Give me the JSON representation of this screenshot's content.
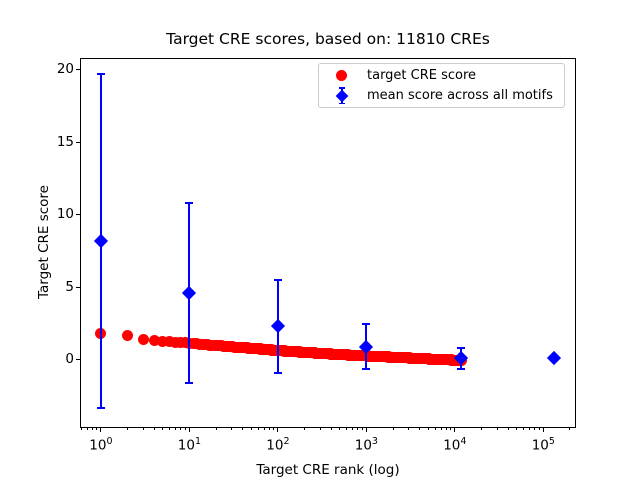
{
  "title": "Target CRE scores, based on: 11810 CREs",
  "axes": {
    "xlabel": "Target CRE rank (log)",
    "ylabel": "Target CRE score"
  },
  "legend": {
    "position": "upper right",
    "items": [
      {
        "label": "target CRE score",
        "marker": "red-circle",
        "color": "#ff0000"
      },
      {
        "label": "mean score across all motifs",
        "marker": "blue-diamond-errorbar",
        "color": "#0000ff"
      }
    ]
  },
  "chart_data": {
    "type": "scatter",
    "title": "Target CRE scores, based on: 11810 CREs",
    "xlabel": "Target CRE rank (log)",
    "ylabel": "Target CRE score",
    "xscale": "log",
    "grid": false,
    "xlim": [
      0.58,
      234000
    ],
    "ylim": [
      -4.68,
      20.86
    ],
    "x_ticks": [
      {
        "value": 1,
        "exponent": "0"
      },
      {
        "value": 10,
        "exponent": "1"
      },
      {
        "value": 100,
        "exponent": "2"
      },
      {
        "value": 1000,
        "exponent": "3"
      },
      {
        "value": 10000,
        "exponent": "4"
      },
      {
        "value": 100000,
        "exponent": "5"
      }
    ],
    "y_ticks": [
      0,
      5,
      10,
      15,
      20
    ],
    "series": [
      {
        "name": "target CRE score",
        "marker": "circle",
        "color": "#ff0000",
        "n_points": 11810,
        "sampled_points": [
          [
            1,
            1.81
          ],
          [
            2,
            1.7
          ],
          [
            3,
            1.42
          ],
          [
            4,
            1.35
          ],
          [
            5,
            1.28
          ],
          [
            6,
            1.24
          ],
          [
            8,
            1.18
          ],
          [
            10,
            1.13
          ],
          [
            13,
            1.07
          ],
          [
            17,
            1.01
          ],
          [
            22,
            0.96
          ],
          [
            30,
            0.89
          ],
          [
            40,
            0.83
          ],
          [
            55,
            0.77
          ],
          [
            75,
            0.7
          ],
          [
            100,
            0.63
          ],
          [
            140,
            0.57
          ],
          [
            200,
            0.51
          ],
          [
            280,
            0.45
          ],
          [
            400,
            0.39
          ],
          [
            550,
            0.34
          ],
          [
            750,
            0.3
          ],
          [
            1000,
            0.26
          ],
          [
            1400,
            0.22
          ],
          [
            2000,
            0.17
          ],
          [
            2800,
            0.13
          ],
          [
            4000,
            0.08
          ],
          [
            5500,
            0.04
          ],
          [
            7500,
            0.0
          ],
          [
            10000,
            -0.03
          ],
          [
            11810,
            -0.05
          ]
        ]
      },
      {
        "name": "mean score across all motifs",
        "marker": "diamond",
        "color": "#0000ff",
        "points": [
          {
            "x": 1,
            "y": 8.2,
            "err": 11.5
          },
          {
            "x": 10,
            "y": 4.6,
            "err": 6.2
          },
          {
            "x": 100,
            "y": 2.3,
            "err": 3.2
          },
          {
            "x": 1000,
            "y": 0.9,
            "err": 1.55
          },
          {
            "x": 11810,
            "y": 0.1,
            "err": 0.72
          },
          {
            "x": 131000,
            "y": 0.1,
            "err": 0.04
          }
        ]
      }
    ]
  }
}
